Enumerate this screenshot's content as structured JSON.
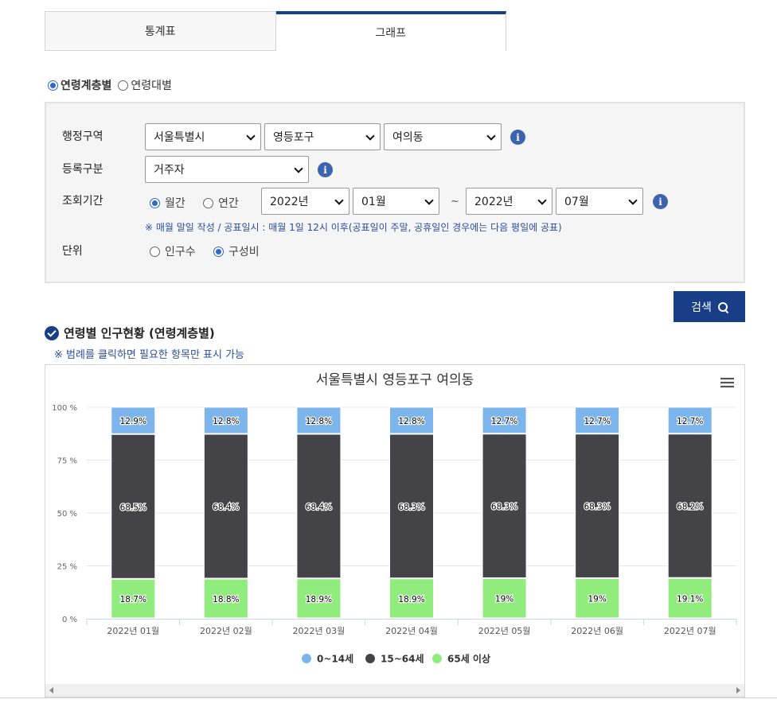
{
  "tabs": [
    {
      "label": "통계표",
      "active": false
    },
    {
      "label": "그래프",
      "active": true
    }
  ],
  "view_mode": {
    "options": [
      "연령계층별",
      "연령대별"
    ],
    "selected": "연령계층별"
  },
  "filters": {
    "region_label": "행정구역",
    "region_sido": "서울특별시",
    "region_sigungu": "영등포구",
    "region_dong": "여의동",
    "registration_label": "등록구분",
    "registration_value": "거주자",
    "period_label": "조회기간",
    "period_monthly": "월간",
    "period_yearly": "연간",
    "period_selected": "월간",
    "start_year": "2022년",
    "start_month": "01월",
    "tilde": "~",
    "end_year": "2022년",
    "end_month": "07월",
    "note": "※ 매월 말일 작성 / 공표일시 : 매월 1일 12시 이후(공표일이 주말, 공휴일인 경우에는 다음 평일에 공표)",
    "unit_label": "단위",
    "unit_population": "인구수",
    "unit_ratio": "구성비",
    "unit_selected": "구성비"
  },
  "search_label": "검색",
  "section_title": "연령별 인구현황 (연령계층별)",
  "legend_hint": "※ 범례를 클릭하면 필요한 항목만 표시 가능",
  "icons": {
    "info": "info-icon",
    "search": "search-icon",
    "menu": "hamburger-menu-icon",
    "check": "check-circle-icon"
  },
  "colors": {
    "series_0_14": "#7cb5ec",
    "series_15_64": "#434348",
    "series_65": "#90ed7d",
    "accent": "#183e88"
  },
  "chart_data": {
    "type": "bar",
    "stacked": "percent",
    "title": "서울특별시 영등포구 여의동",
    "categories": [
      "2022년 01월",
      "2022년 02월",
      "2022년 03월",
      "2022년 04월",
      "2022년 05월",
      "2022년 06월",
      "2022년 07월"
    ],
    "series": [
      {
        "name": "0~14세",
        "color": "#7cb5ec",
        "values": [
          12.9,
          12.8,
          12.8,
          12.8,
          12.7,
          12.7,
          12.7
        ],
        "labels": [
          "12.9%",
          "12.8%",
          "12.8%",
          "12.8%",
          "12.7%",
          "12.7%",
          "12.7%"
        ]
      },
      {
        "name": "15~64세",
        "color": "#434348",
        "values": [
          68.5,
          68.4,
          68.4,
          68.3,
          68.3,
          68.3,
          68.2
        ],
        "labels": [
          "68.5%",
          "68.4%",
          "68.4%",
          "68.3%",
          "68.3%",
          "68.3%",
          "68.2%"
        ]
      },
      {
        "name": "65세 이상",
        "color": "#90ed7d",
        "values": [
          18.7,
          18.8,
          18.9,
          18.9,
          19.0,
          19.0,
          19.1
        ],
        "labels": [
          "18.7%",
          "18.8%",
          "18.9%",
          "18.9%",
          "19%",
          "19%",
          "19.1%"
        ]
      }
    ],
    "yticks": [
      "0 %",
      "25 %",
      "50 %",
      "75 %",
      "100 %"
    ],
    "ylim": [
      0,
      100
    ],
    "grid": true,
    "legend_position": "bottom-center"
  }
}
